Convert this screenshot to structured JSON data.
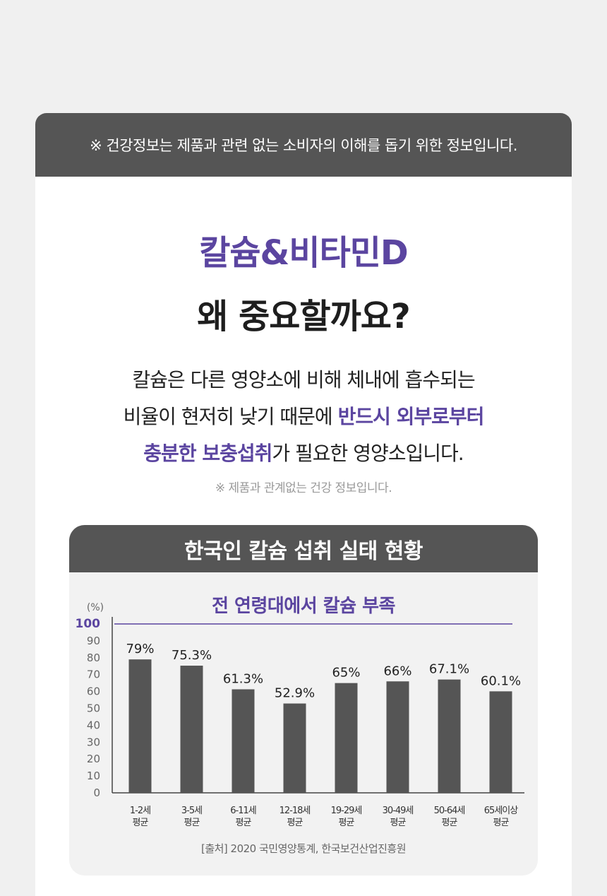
{
  "notice": "※ 건강정보는 제품과 관련 없는 소비자의 이해를 돕기 위한 정보입니다.",
  "title": {
    "line1": "칼슘&비타민D",
    "line2": "왜 중요할까요?"
  },
  "description": {
    "l1": "칼슘은 다른 영양소에 비해 체내에 흡수되는",
    "l2_a": "비율이 현저히 낮기 때문에 ",
    "l2_b": "반드시 외부로부터",
    "l3_a": "충분한 보충섭취",
    "l3_b": "가 필요한 영양소입니다."
  },
  "small_note": "※ 제품과 관계없는 건강 정보입니다.",
  "chart_header": "한국인 칼슘 섭취 실태 현황",
  "chart_subtitle": "전 연령대에서 칼슘 부족",
  "source": "[출처] 2020 국민영양통계, 한국보건산업진흥원",
  "colors": {
    "accent": "#5b45a0",
    "bar": "#555555",
    "header_bg": "#555555"
  },
  "chart_data": {
    "type": "bar",
    "ylabel": "(%)",
    "ylim": [
      0,
      100
    ],
    "yticks": [
      0,
      10,
      20,
      30,
      40,
      50,
      60,
      70,
      80,
      90,
      100
    ],
    "categories": [
      [
        "1-2세",
        "평균"
      ],
      [
        "3-5세",
        "평균"
      ],
      [
        "6-11세",
        "평균"
      ],
      [
        "12-18세",
        "평균"
      ],
      [
        "19-29세",
        "평균"
      ],
      [
        "30-49세",
        "평균"
      ],
      [
        "50-64세",
        "평균"
      ],
      [
        "65세이상",
        "평균"
      ]
    ],
    "values": [
      79,
      75.3,
      61.3,
      52.9,
      65,
      66,
      67.1,
      60.1
    ],
    "value_labels": [
      "79%",
      "75.3%",
      "61.3%",
      "52.9%",
      "65%",
      "66%",
      "67.1%",
      "60.1%"
    ],
    "reference_line": 100,
    "grid": false
  }
}
